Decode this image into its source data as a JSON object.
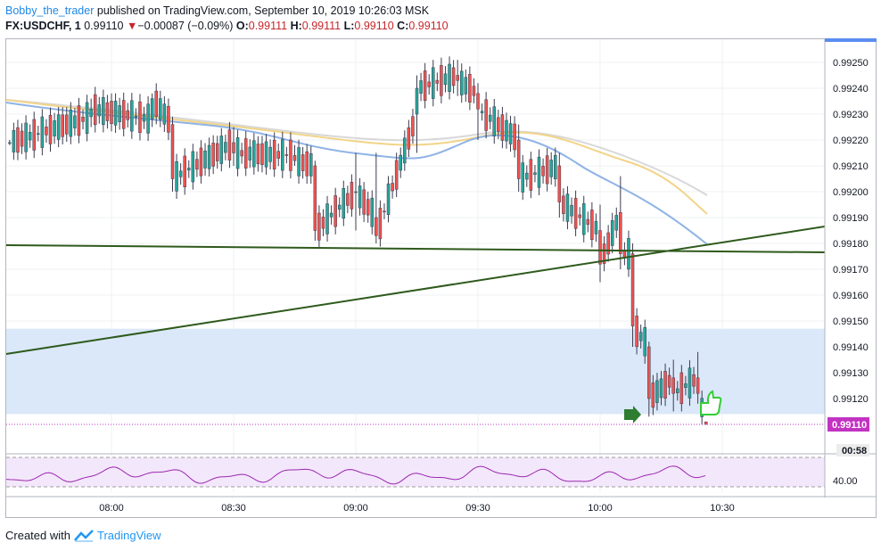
{
  "header": {
    "author": "Bobby_the_trader",
    "published_text": "published on TradingView.com, September 10, 2019 10:26:03 MSK",
    "symbol": "FX:USDCHF, 1",
    "last": "0.99110",
    "change": "−0.00087 (−0.09%)",
    "o_label": "O:",
    "o_value": "0.99111",
    "h_label": "H:",
    "h_value": "0.99111",
    "l_label": "L:",
    "l_value": "0.99110",
    "c_label": "C:",
    "c_value": "0.99110"
  },
  "price_axis": {
    "ticks": [
      "0.99250",
      "0.99240",
      "0.99230",
      "0.99220",
      "0.99210",
      "0.99200",
      "0.99190",
      "0.99180",
      "0.99170",
      "0.99160",
      "0.99150",
      "0.99140",
      "0.99130",
      "0.99120"
    ],
    "current_price": "0.99110",
    "countdown": "00:58"
  },
  "time_axis": {
    "ticks": [
      "08:00",
      "08:30",
      "09:00",
      "09:30",
      "10:00",
      "10:30"
    ]
  },
  "rsi": {
    "level_label": "40.00"
  },
  "footer": {
    "created_with": "Created with",
    "brand": "TradingView"
  },
  "colors": {
    "up": "#26a69a",
    "down": "#ef5350",
    "candle": "#3c3c50",
    "trendline": "#2e5a1c",
    "zone": "#dbe8f9",
    "rsi_line": "#9c27b0",
    "rsi_bg": "#f3e7fb",
    "ma_fast": "#8fb3e6",
    "ma_mid": "#f2d488",
    "ma_slow": "#d8d8d8",
    "price_label": "#c233c2"
  },
  "chart_data": {
    "type": "candlestick",
    "title": "FX:USDCHF, 1",
    "x_ticks": [
      "08:00",
      "08:30",
      "09:00",
      "09:30",
      "10:00",
      "10:30"
    ],
    "y_range": [
      0.99105,
      0.9926
    ],
    "ohlc_samples": [
      {
        "t": "07:35",
        "o": 0.99219,
        "h": 0.9922,
        "l": 0.99218,
        "c": 0.99219
      },
      {
        "t": "07:55",
        "o": 0.99229,
        "h": 0.99236,
        "l": 0.99225,
        "c": 0.99232
      },
      {
        "t": "08:10",
        "o": 0.99228,
        "h": 0.99238,
        "l": 0.99225,
        "c": 0.99236
      },
      {
        "t": "08:15",
        "o": 0.99226,
        "h": 0.99229,
        "l": 0.992,
        "c": 0.99205
      },
      {
        "t": "08:30",
        "o": 0.99219,
        "h": 0.99225,
        "l": 0.9921,
        "c": 0.99215
      },
      {
        "t": "08:45",
        "o": 0.99214,
        "h": 0.99218,
        "l": 0.9921,
        "c": 0.99212
      },
      {
        "t": "08:50",
        "o": 0.9921,
        "h": 0.99212,
        "l": 0.99181,
        "c": 0.99185
      },
      {
        "t": "09:00",
        "o": 0.992,
        "h": 0.99215,
        "l": 0.99185,
        "c": 0.992
      },
      {
        "t": "09:05",
        "o": 0.9919,
        "h": 0.99215,
        "l": 0.9918,
        "c": 0.99183
      },
      {
        "t": "09:15",
        "o": 0.9923,
        "h": 0.99245,
        "l": 0.99215,
        "c": 0.9924
      },
      {
        "t": "09:25",
        "o": 0.99245,
        "h": 0.99251,
        "l": 0.99237,
        "c": 0.99243
      },
      {
        "t": "09:30",
        "o": 0.99238,
        "h": 0.99242,
        "l": 0.9922,
        "c": 0.99232
      },
      {
        "t": "09:40",
        "o": 0.9922,
        "h": 0.99226,
        "l": 0.992,
        "c": 0.99205
      },
      {
        "t": "09:50",
        "o": 0.9921,
        "h": 0.99215,
        "l": 0.9919,
        "c": 0.99196
      },
      {
        "t": "10:00",
        "o": 0.99185,
        "h": 0.99195,
        "l": 0.99165,
        "c": 0.99172
      },
      {
        "t": "10:05",
        "o": 0.99192,
        "h": 0.99206,
        "l": 0.9917,
        "c": 0.99176
      },
      {
        "t": "10:08",
        "o": 0.99176,
        "h": 0.9918,
        "l": 0.9914,
        "c": 0.99148
      },
      {
        "t": "10:12",
        "o": 0.9914,
        "h": 0.99142,
        "l": 0.99113,
        "c": 0.9912
      },
      {
        "t": "10:18",
        "o": 0.99128,
        "h": 0.99135,
        "l": 0.99115,
        "c": 0.99122
      },
      {
        "t": "10:24",
        "o": 0.99128,
        "h": 0.99138,
        "l": 0.99118,
        "c": 0.99122
      },
      {
        "t": "10:26",
        "o": 0.99111,
        "h": 0.99111,
        "l": 0.9911,
        "c": 0.9911
      }
    ],
    "moving_averages": [
      {
        "name": "fast",
        "end_value": 0.99183
      },
      {
        "name": "mid",
        "end_value": 0.99193
      },
      {
        "name": "slow",
        "end_value": 0.992
      }
    ],
    "support_zone": [
      0.99114,
      0.99147
    ],
    "rsi_level": 40
  }
}
